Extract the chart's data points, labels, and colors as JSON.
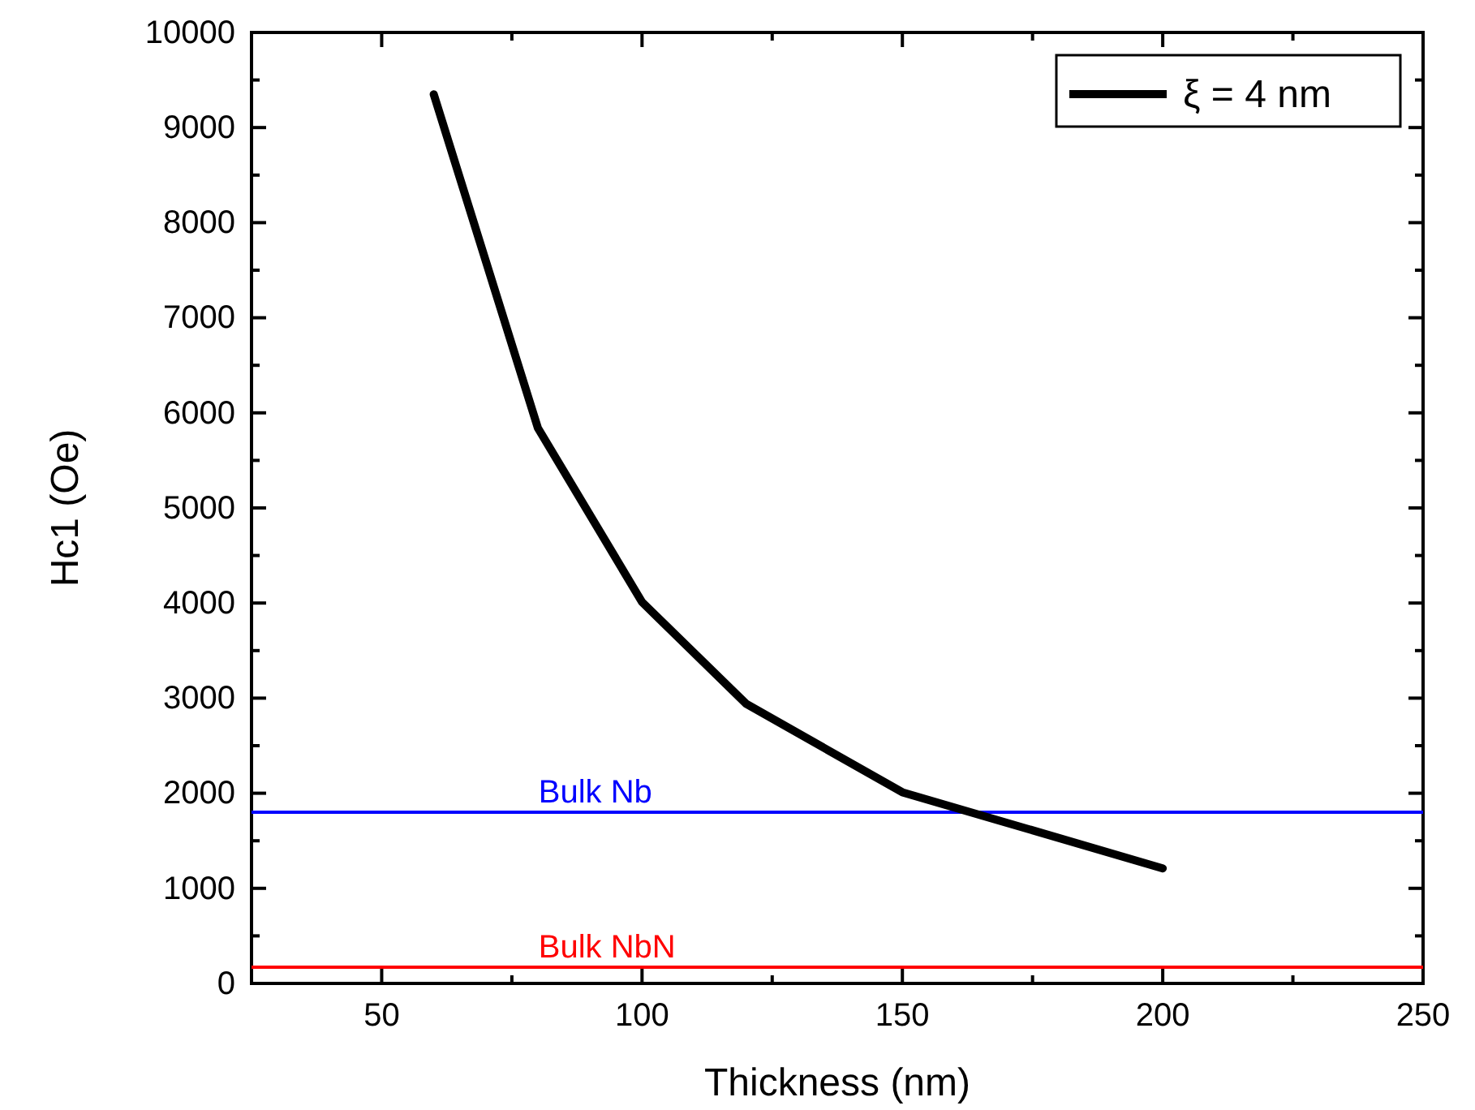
{
  "chart_data": {
    "type": "line",
    "xlabel": "Thickness (nm)",
    "ylabel": "Hc1 (Oe)",
    "x": [
      60,
      80,
      100,
      120,
      150,
      200
    ],
    "series": [
      {
        "name": "ξ = 4 nm",
        "color": "#000000",
        "values": [
          9350,
          5840,
          4010,
          2940,
          2010,
          1210
        ]
      }
    ],
    "xlim": [
      25,
      250
    ],
    "xticks": [
      {
        "value": 25,
        "label": null
      },
      50,
      {
        "value": 75,
        "label": null
      },
      100,
      {
        "value": 125,
        "label": null
      },
      150,
      {
        "value": 175,
        "label": null
      },
      200,
      {
        "value": 225,
        "label": null
      },
      250
    ],
    "ylim": [
      0,
      10000
    ],
    "yticks": [
      0,
      {
        "value": 500,
        "label": null
      },
      1000,
      {
        "value": 1500,
        "label": null
      },
      2000,
      {
        "value": 2500,
        "label": null
      },
      3000,
      {
        "value": 3500,
        "label": null
      },
      4000,
      {
        "value": 4500,
        "label": null
      },
      5000,
      {
        "value": 5500,
        "label": null
      },
      6000,
      {
        "value": 6500,
        "label": null
      },
      7000,
      {
        "value": 7500,
        "label": null
      },
      8000,
      {
        "value": 8500,
        "label": null
      },
      9000,
      {
        "value": 9500,
        "label": null
      },
      10000
    ],
    "ref_lines": [
      {
        "axis": "y",
        "value": 1800,
        "label": "Bulk Nb",
        "color": "#0000ff"
      },
      {
        "axis": "y",
        "value": 170,
        "label": "Bulk NbN",
        "color": "#ff0000"
      }
    ],
    "legend": "top right",
    "marker": "none",
    "line_style": "solid",
    "grid": false
  }
}
